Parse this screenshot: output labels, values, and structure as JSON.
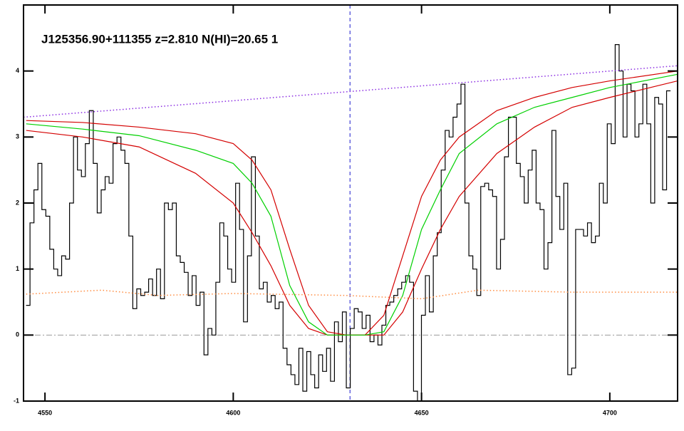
{
  "chart_data": {
    "type": "line",
    "title": "J125356.90+111355 z=2.810 N(HI)=20.65 1",
    "xlim": [
      4544.3,
      4718
    ],
    "ylim": [
      -1,
      5
    ],
    "xticks": [
      4550,
      4600,
      4650,
      4700
    ],
    "yticks": [
      -1,
      0,
      1,
      2,
      3,
      4
    ],
    "hlines": [
      {
        "value": 0,
        "color": "#9a9a9a"
      }
    ],
    "vlines": [
      {
        "value": 4631,
        "color": "#1a1acc"
      }
    ],
    "series": [
      {
        "color": "#000000",
        "style": "step",
        "x": [
          4545.5,
          4546.55,
          4547.6,
          4548.65,
          4549.7,
          4550.75,
          4551.8,
          4552.85,
          4553.9,
          4554.95,
          4556,
          4557.05,
          4558.1,
          4559.15,
          4560.2,
          4561.25,
          4562.3,
          4563.35,
          4564.4,
          4565.45,
          4566.5,
          4567.55,
          4568.6,
          4569.65,
          4570.7,
          4571.75,
          4572.8,
          4573.85,
          4574.9,
          4575.95,
          4577,
          4578.05,
          4579.1,
          4580.15,
          4581.2,
          4582.25,
          4583.3,
          4584.35,
          4585.4,
          4586.45,
          4587.5,
          4588.55,
          4589.6,
          4590.65,
          4591.7,
          4592.75,
          4593.8,
          4594.85,
          4595.9,
          4596.95,
          4598,
          4599.05,
          4600.1,
          4601.15,
          4602.2,
          4603.25,
          4604.3,
          4605.35,
          4606.4,
          4607.45,
          4608.5,
          4609.55,
          4610.6,
          4611.65,
          4612.7,
          4613.75,
          4614.8,
          4615.85,
          4616.9,
          4617.95,
          4619,
          4620.05,
          4621.1,
          4622.15,
          4623.2,
          4624.25,
          4625.3,
          4626.35,
          4627.4,
          4628.45,
          4629.5,
          4630.55,
          4631.6,
          4632.65,
          4633.7,
          4634.75,
          4635.8,
          4636.85,
          4637.9,
          4638.95,
          4640,
          4641.05,
          4642.1,
          4643.15,
          4644.2,
          4645.25,
          4646.3,
          4647.35,
          4648.4,
          4649.45,
          4650.5,
          4651.55,
          4652.6,
          4653.65,
          4654.7,
          4655.75,
          4656.8,
          4657.85,
          4658.9,
          4659.95,
          4661,
          4662.05,
          4663.1,
          4664.15,
          4665.2,
          4666.25,
          4667.3,
          4668.35,
          4669.4,
          4670.45,
          4671.5,
          4672.55,
          4673.6,
          4674.65,
          4675.7,
          4676.75,
          4677.8,
          4678.85,
          4679.9,
          4680.95,
          4682,
          4683.05,
          4684.1,
          4685.15,
          4686.2,
          4687.25,
          4688.3,
          4689.35,
          4690.4,
          4691.45,
          4692.5,
          4693.55,
          4694.6,
          4695.65,
          4696.7,
          4697.75,
          4698.8,
          4699.85,
          4700.9,
          4701.95,
          4703,
          4704.05,
          4705.1,
          4706.15,
          4707.2,
          4708.25,
          4709.3,
          4710.35,
          4711.4,
          4712.45,
          4713.5,
          4714.55,
          4715.6
        ],
        "values": [
          0.45,
          1.7,
          2.2,
          2.6,
          1.9,
          1.8,
          1.3,
          1.0,
          0.9,
          1.2,
          1.15,
          2.0,
          3.0,
          2.5,
          2.4,
          2.9,
          3.4,
          2.6,
          1.85,
          2.2,
          2.4,
          2.3,
          2.9,
          3.0,
          2.8,
          2.6,
          1.5,
          0.4,
          0.7,
          0.6,
          0.65,
          0.85,
          0.6,
          1.0,
          0.55,
          2.0,
          1.9,
          2.0,
          1.2,
          1.1,
          0.95,
          0.6,
          0.9,
          0.45,
          0.65,
          -0.3,
          0.1,
          0.0,
          0.8,
          1.7,
          1.5,
          1.0,
          0.8,
          2.3,
          1.6,
          0.2,
          1.2,
          2.7,
          1.5,
          0.7,
          0.8,
          0.5,
          0.6,
          0.4,
          0.5,
          -0.2,
          -0.45,
          -0.6,
          -0.75,
          -0.2,
          -0.85,
          -0.25,
          -0.6,
          -0.8,
          -0.3,
          -0.55,
          -0.2,
          -0.7,
          0.2,
          -0.1,
          0.35,
          -0.8,
          0.1,
          0.4,
          0.35,
          0.1,
          0.3,
          -0.1,
          0.0,
          -0.15,
          0.15,
          0.45,
          0.5,
          0.6,
          0.7,
          0.8,
          0.9,
          0.8,
          -0.85,
          -1.0,
          0.3,
          0.9,
          0.35,
          1.2,
          1.55,
          2.5,
          3.1,
          3.0,
          3.3,
          3.5,
          3.8,
          2.0,
          1.2,
          1.0,
          0.6,
          2.25,
          2.3,
          2.2,
          2.1,
          1.0,
          1.45,
          2.7,
          3.3,
          3.3,
          2.6,
          2.4,
          2.0,
          2.5,
          2.8,
          2.0,
          1.9,
          1.0,
          1.4,
          3.1,
          2.1,
          1.6,
          2.3,
          -0.6,
          -0.5,
          1.6,
          1.6,
          1.5,
          1.7,
          1.4,
          1.5,
          2.3,
          2.0,
          3.2,
          2.9,
          4.4,
          4.0,
          3.0,
          3.8,
          3.7,
          3.0,
          3.2,
          3.8,
          3.2,
          2.0,
          3.6,
          3.5,
          2.2,
          3.7
        ]
      },
      {
        "color": "#d40000",
        "style": "solid",
        "x": [
          4545,
          4560,
          4575,
          4590,
          4600,
          4605,
          4610,
          4615,
          4620,
          4625,
          4630,
          4635,
          4640,
          4645,
          4650,
          4655,
          4660,
          4670,
          4680,
          4690,
          4700,
          4718
        ],
        "values": [
          3.25,
          3.22,
          3.15,
          3.05,
          2.9,
          2.65,
          2.2,
          1.3,
          0.45,
          0.05,
          0,
          0,
          0.3,
          1.2,
          2.1,
          2.65,
          3.0,
          3.4,
          3.6,
          3.75,
          3.85,
          4.0
        ]
      },
      {
        "color": "#d40000",
        "style": "solid",
        "x": [
          4545,
          4560,
          4575,
          4590,
          4600,
          4605,
          4610,
          4615,
          4620,
          4625,
          4630,
          4635,
          4640,
          4645,
          4650,
          4655,
          4660,
          4670,
          4680,
          4690,
          4700,
          4718
        ],
        "values": [
          3.1,
          3.0,
          2.85,
          2.45,
          2.0,
          1.55,
          1.05,
          0.45,
          0.1,
          0,
          0,
          0,
          0,
          0.35,
          1.0,
          1.6,
          2.1,
          2.75,
          3.15,
          3.45,
          3.6,
          3.85
        ]
      },
      {
        "color": "#00d000",
        "style": "solid",
        "x": [
          4545,
          4560,
          4575,
          4590,
          4600,
          4605,
          4610,
          4615,
          4620,
          4625,
          4630,
          4635,
          4640,
          4645,
          4650,
          4655,
          4660,
          4670,
          4680,
          4690,
          4700,
          4718
        ],
        "values": [
          3.2,
          3.12,
          3.02,
          2.8,
          2.6,
          2.3,
          1.8,
          0.75,
          0.2,
          0,
          0,
          0,
          0.05,
          0.6,
          1.6,
          2.2,
          2.75,
          3.2,
          3.45,
          3.6,
          3.75,
          3.95
        ]
      },
      {
        "color": "#8a2be2",
        "style": "dotted",
        "x": [
          4544.3,
          4718
        ],
        "values": [
          3.3,
          4.08
        ]
      },
      {
        "color": "#ff8c40",
        "style": "dotted",
        "x": [
          4545,
          4565,
          4580,
          4600,
          4630,
          4650,
          4665,
          4690,
          4718
        ],
        "values": [
          0.62,
          0.68,
          0.6,
          0.63,
          0.6,
          0.55,
          0.68,
          0.65,
          0.65
        ]
      }
    ]
  }
}
